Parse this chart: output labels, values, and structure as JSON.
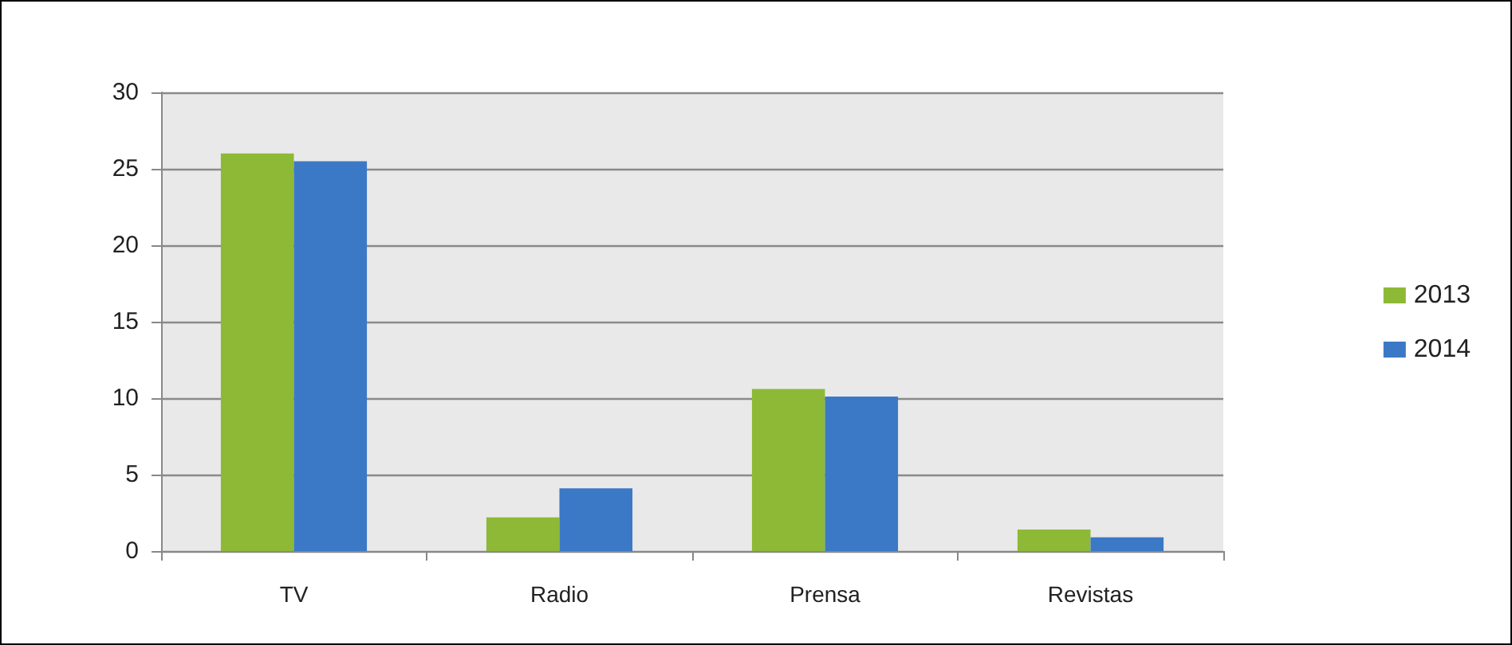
{
  "chart_data": {
    "type": "bar",
    "categories": [
      "TV",
      "Radio",
      "Prensa",
      "Revistas"
    ],
    "series": [
      {
        "name": "2013",
        "color": "#8db936",
        "values": [
          26,
          2.2,
          10.6,
          1.4
        ]
      },
      {
        "name": "2014",
        "color": "#3b79c6",
        "values": [
          25.5,
          4.1,
          10.1,
          0.9
        ]
      }
    ],
    "ylim": [
      0,
      30
    ],
    "yticks": [
      0,
      5,
      10,
      15,
      20,
      25,
      30
    ],
    "grid": "y",
    "legend": "right"
  }
}
